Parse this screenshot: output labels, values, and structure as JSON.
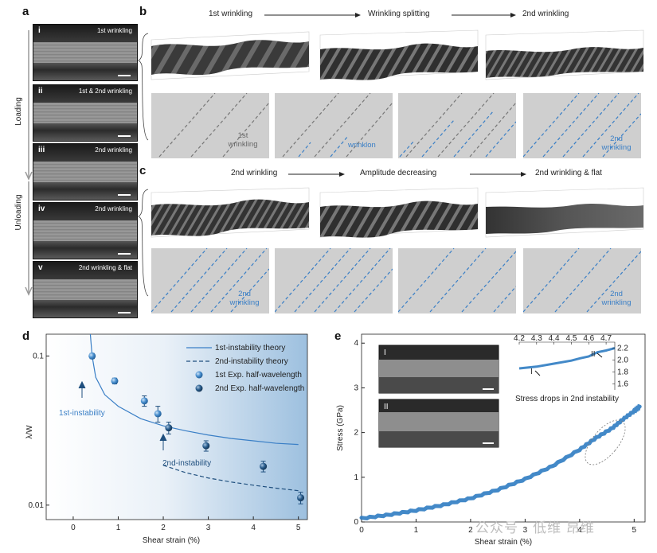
{
  "panels": {
    "a": "a",
    "b": "b",
    "c": "c",
    "d": "d",
    "e": "e"
  },
  "panel_a": {
    "loading": "Loading",
    "unloading": "Unloading",
    "images": [
      {
        "roman": "i",
        "label": "1st wrinkling"
      },
      {
        "roman": "ii",
        "label": "1st & 2nd wrinkling"
      },
      {
        "roman": "iii",
        "label": "2nd wrinkling"
      },
      {
        "roman": "iv",
        "label": "2nd wrinkling"
      },
      {
        "roman": "v",
        "label": "2nd wrinkling & flat"
      }
    ]
  },
  "panel_b": {
    "headers": [
      "1st wrinkling",
      "Wrinkling splitting",
      "2nd wrinkling"
    ],
    "labels": [
      "1st wrinkling",
      "wrinklon",
      "2nd wrinkling"
    ]
  },
  "panel_c": {
    "headers": [
      "2nd wrinkling",
      "Amplitude decreasing",
      "2nd wrinkling & flat"
    ],
    "labels": [
      "2nd wrinkling",
      "2nd wrinkling"
    ]
  },
  "chart_data": [
    {
      "type": "scatter",
      "panel": "d",
      "xlabel": "Shear strain (%)",
      "ylabel": "λ/W",
      "xlim": [
        -0.6,
        5.2
      ],
      "ylim": [
        0.008,
        0.14
      ],
      "yscale": "log",
      "xticks": [
        "0",
        "1",
        "2",
        "3",
        "4",
        "5"
      ],
      "yticks": [
        "0.01",
        "0.1"
      ],
      "legend": [
        "1st-instability theory",
        "2nd-instability theory",
        "1st Exp. half-wavelength",
        "2nd Exp. half-wavelength"
      ],
      "annotations": [
        "1st-instability",
        "2nd-instability"
      ],
      "series": [
        {
          "name": "1st Exp. half-wavelength",
          "x": [
            0.42,
            0.92,
            1.58,
            1.88
          ],
          "y": [
            0.1,
            0.068,
            0.05,
            0.041
          ],
          "err": [
            0.004,
            0.003,
            0.004,
            0.005
          ]
        },
        {
          "name": "2nd Exp. half-wavelength",
          "x": [
            2.12,
            2.95,
            4.22,
            5.05
          ],
          "y": [
            0.033,
            0.025,
            0.0182,
            0.0112
          ],
          "err": [
            0.003,
            0.002,
            0.0015,
            0.001
          ]
        },
        {
          "name": "1st-instability theory",
          "x": [
            0.38,
            0.42,
            0.5,
            0.7,
            1.0,
            1.5,
            2.0,
            2.5,
            3.0,
            3.5,
            4.0,
            4.5,
            5.0
          ],
          "y": [
            0.14,
            0.1,
            0.072,
            0.055,
            0.046,
            0.038,
            0.034,
            0.0315,
            0.0295,
            0.028,
            0.027,
            0.026,
            0.0255
          ]
        },
        {
          "name": "2nd-instability theory",
          "x": [
            2.0,
            2.5,
            3.0,
            3.5,
            4.0,
            4.5,
            5.0
          ],
          "y": [
            0.0185,
            0.0165,
            0.0152,
            0.0143,
            0.0136,
            0.013,
            0.0125
          ]
        }
      ]
    },
    {
      "type": "line",
      "panel": "e",
      "xlabel": "Shear strain (%)",
      "ylabel": "Stress (GPa)",
      "xlim": [
        0,
        5.2
      ],
      "ylim": [
        0,
        4.2
      ],
      "xticks": [
        "0",
        "1",
        "2",
        "3",
        "4",
        "5"
      ],
      "yticks": [
        "0",
        "1",
        "2",
        "3",
        "4"
      ],
      "series": [
        {
          "name": "Stress",
          "x": [
            0,
            0.5,
            1.0,
            1.5,
            2.0,
            2.5,
            3.0,
            3.5,
            4.0,
            4.3,
            4.6,
            4.8,
            5.0,
            5.1
          ],
          "y": [
            0.08,
            0.16,
            0.26,
            0.38,
            0.53,
            0.72,
            0.96,
            1.25,
            1.62,
            1.88,
            2.1,
            2.3,
            2.48,
            2.58
          ]
        }
      ],
      "inset": {
        "title": "Stress drops in 2nd instability",
        "xticks": [
          "4.2",
          "4.3",
          "4.4",
          "4.5",
          "4.6",
          "4.7"
        ],
        "yticks": [
          "2.2",
          "2.0",
          "1.8",
          "1.6"
        ],
        "x": [
          4.2,
          4.3,
          4.4,
          4.5,
          4.55,
          4.6,
          4.65,
          4.7,
          4.75
        ],
        "y": [
          1.86,
          1.89,
          1.94,
          1.99,
          2.03,
          2.06,
          2.13,
          2.16,
          2.2
        ],
        "markers": [
          "I",
          "II"
        ]
      },
      "sem_labels": [
        "I",
        "II"
      ]
    }
  ],
  "watermark": "公众号 · 低维 昂维"
}
